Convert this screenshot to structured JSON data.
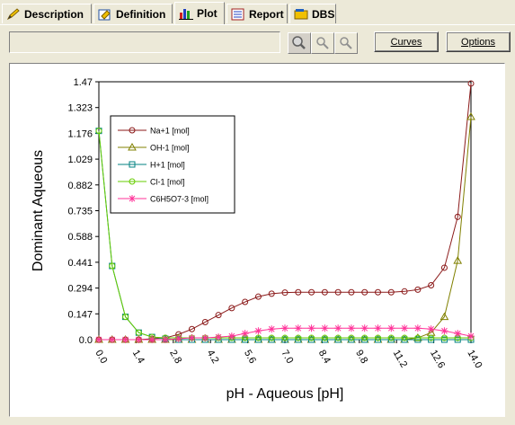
{
  "tabs": [
    {
      "label": "Description",
      "icon": "pencil-icon",
      "active": false
    },
    {
      "label": "Definition",
      "icon": "definition-icon",
      "active": false
    },
    {
      "label": "Plot",
      "icon": "bar-chart-icon",
      "active": true
    },
    {
      "label": "Report",
      "icon": "report-icon",
      "active": false
    },
    {
      "label": "DBS",
      "icon": "database-icon",
      "active": false
    }
  ],
  "toolbar": {
    "status_text": "",
    "curves_label": "Curves",
    "options_label": "Options"
  },
  "chart_data": {
    "type": "line",
    "xlabel": "pH - Aqueous [pH]",
    "ylabel": "Dominant Aqueous",
    "xlim": [
      0,
      14
    ],
    "ylim": [
      0,
      1.47
    ],
    "xticks": [
      "0.0",
      "1.4",
      "2.8",
      "4.2",
      "5.6",
      "7.0",
      "8.4",
      "9.8",
      "11.2",
      "12.6",
      "14.0"
    ],
    "yticks": [
      "0.0",
      "0.147",
      "0.294",
      "0.441",
      "0.588",
      "0.735",
      "0.882",
      "1.029",
      "1.176",
      "1.323",
      "1.47"
    ],
    "x": [
      0.0,
      0.5,
      1.0,
      1.5,
      2.0,
      2.5,
      3.0,
      3.5,
      4.0,
      4.5,
      5.0,
      5.5,
      6.0,
      6.5,
      7.0,
      7.5,
      8.0,
      8.5,
      9.0,
      9.5,
      10.0,
      10.5,
      11.0,
      11.5,
      12.0,
      12.5,
      13.0,
      13.5,
      14.0
    ],
    "series": [
      {
        "name": "Na+1 [mol]",
        "color": "#8b1a1a",
        "marker": "circle",
        "values": [
          0.0,
          0.0,
          0.0,
          0.0,
          0.005,
          0.01,
          0.03,
          0.06,
          0.1,
          0.14,
          0.18,
          0.215,
          0.245,
          0.262,
          0.268,
          0.27,
          0.27,
          0.27,
          0.27,
          0.27,
          0.27,
          0.27,
          0.27,
          0.275,
          0.285,
          0.31,
          0.41,
          0.7,
          1.46
        ]
      },
      {
        "name": "OH-1 [mol]",
        "color": "#808000",
        "marker": "triangle",
        "values": [
          0.0,
          0.0,
          0.0,
          0.0,
          0.0,
          0.0,
          0.0,
          0.0,
          0.0,
          0.0,
          0.0,
          0.0,
          0.0,
          0.0,
          0.0,
          0.0,
          0.0,
          0.0,
          0.0,
          0.0,
          0.0,
          0.0,
          0.0,
          0.0,
          0.01,
          0.04,
          0.13,
          0.45,
          1.27
        ]
      },
      {
        "name": "H+1 [mol]",
        "color": "#008080",
        "marker": "square",
        "values": [
          1.19,
          0.42,
          0.13,
          0.04,
          0.015,
          0.005,
          0.0,
          0.0,
          0.0,
          0.0,
          0.0,
          0.0,
          0.0,
          0.0,
          0.0,
          0.0,
          0.0,
          0.0,
          0.0,
          0.0,
          0.0,
          0.0,
          0.0,
          0.0,
          0.0,
          0.0,
          0.0,
          0.0,
          0.0
        ]
      },
      {
        "name": "Cl-1 [mol]",
        "color": "#66cc00",
        "marker": "circle",
        "values": [
          1.19,
          0.42,
          0.13,
          0.04,
          0.015,
          0.01,
          0.01,
          0.01,
          0.01,
          0.01,
          0.01,
          0.01,
          0.01,
          0.01,
          0.01,
          0.01,
          0.01,
          0.01,
          0.01,
          0.01,
          0.01,
          0.01,
          0.01,
          0.01,
          0.01,
          0.01,
          0.01,
          0.01,
          0.01
        ]
      },
      {
        "name": "C6H5O7-3 [mol]",
        "color": "#ff3399",
        "marker": "star",
        "values": [
          0.0,
          0.0,
          0.0,
          0.0,
          0.0,
          0.0,
          0.005,
          0.01,
          0.01,
          0.015,
          0.02,
          0.035,
          0.05,
          0.06,
          0.065,
          0.065,
          0.065,
          0.065,
          0.065,
          0.065,
          0.065,
          0.065,
          0.065,
          0.065,
          0.065,
          0.06,
          0.05,
          0.035,
          0.02
        ]
      }
    ],
    "legend_position": "top-left",
    "grid": false
  }
}
